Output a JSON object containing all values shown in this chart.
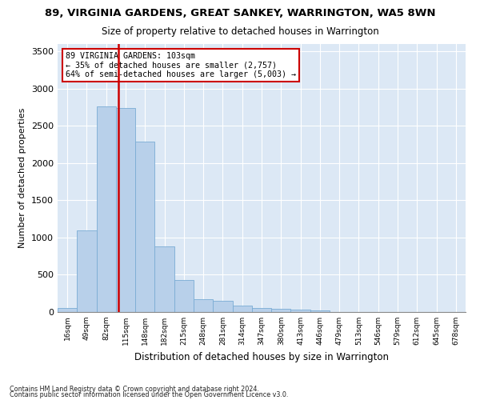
{
  "title": "89, VIRGINIA GARDENS, GREAT SANKEY, WARRINGTON, WA5 8WN",
  "subtitle": "Size of property relative to detached houses in Warrington",
  "xlabel": "Distribution of detached houses by size in Warrington",
  "ylabel": "Number of detached properties",
  "bar_color": "#b8d0ea",
  "bar_edge_color": "#7aacd4",
  "background_color": "#dce8f5",
  "grid_color": "#ffffff",
  "categories": [
    "16sqm",
    "49sqm",
    "82sqm",
    "115sqm",
    "148sqm",
    "182sqm",
    "215sqm",
    "248sqm",
    "281sqm",
    "314sqm",
    "347sqm",
    "380sqm",
    "413sqm",
    "446sqm",
    "479sqm",
    "513sqm",
    "546sqm",
    "579sqm",
    "612sqm",
    "645sqm",
    "678sqm"
  ],
  "values": [
    50,
    1100,
    2760,
    2740,
    2290,
    880,
    430,
    175,
    155,
    90,
    55,
    48,
    30,
    22,
    5,
    2,
    0,
    0,
    0,
    0,
    0
  ],
  "ylim": [
    0,
    3600
  ],
  "yticks": [
    0,
    500,
    1000,
    1500,
    2000,
    2500,
    3000,
    3500
  ],
  "property_label": "89 VIRGINIA GARDENS: 103sqm",
  "annotation_line1": "← 35% of detached houses are smaller (2,757)",
  "annotation_line2": "64% of semi-detached houses are larger (5,003) →",
  "vline_color": "#cc0000",
  "footnote1": "Contains HM Land Registry data © Crown copyright and database right 2024.",
  "footnote2": "Contains public sector information licensed under the Open Government Licence v3.0."
}
